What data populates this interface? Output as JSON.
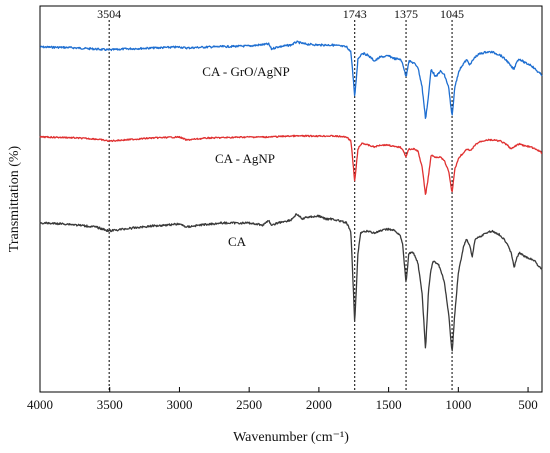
{
  "chart_data": {
    "type": "line",
    "xlabel": "Wavenumber (cm⁻¹)",
    "ylabel": "Transmittation (%)",
    "x_range": [
      4000,
      400
    ],
    "x_reversed": true,
    "x_ticks": [
      4000,
      3500,
      3000,
      2500,
      2000,
      1500,
      1000,
      500
    ],
    "y_ticks": false,
    "reference_lines": [
      3504,
      1743,
      1375,
      1045
    ],
    "series": [
      {
        "name": "CA - GrO/AgNP",
        "color": "#1f6fd1",
        "baseline": 47,
        "noise": 1.0,
        "points": [
          [
            4000,
            0
          ],
          [
            3800,
            0.5
          ],
          [
            3600,
            2
          ],
          [
            3504,
            3
          ],
          [
            3400,
            2
          ],
          [
            3200,
            1
          ],
          [
            3000,
            0
          ],
          [
            2950,
            1
          ],
          [
            2800,
            0
          ],
          [
            2500,
            -1
          ],
          [
            2360,
            -3
          ],
          [
            2340,
            2
          ],
          [
            2300,
            0
          ],
          [
            2200,
            -2
          ],
          [
            2160,
            -5
          ],
          [
            2100,
            -3
          ],
          [
            2000,
            -2
          ],
          [
            1900,
            -2
          ],
          [
            1800,
            0
          ],
          [
            1770,
            5
          ],
          [
            1743,
            50
          ],
          [
            1720,
            12
          ],
          [
            1690,
            6
          ],
          [
            1650,
            8
          ],
          [
            1600,
            14
          ],
          [
            1560,
            10
          ],
          [
            1500,
            9
          ],
          [
            1450,
            12
          ],
          [
            1420,
            12
          ],
          [
            1400,
            16
          ],
          [
            1375,
            30
          ],
          [
            1355,
            14
          ],
          [
            1320,
            16
          ],
          [
            1290,
            20
          ],
          [
            1260,
            40
          ],
          [
            1235,
            72
          ],
          [
            1215,
            50
          ],
          [
            1195,
            22
          ],
          [
            1170,
            28
          ],
          [
            1160,
            30
          ],
          [
            1130,
            24
          ],
          [
            1100,
            28
          ],
          [
            1070,
            40
          ],
          [
            1045,
            70
          ],
          [
            1025,
            40
          ],
          [
            1000,
            26
          ],
          [
            980,
            20
          ],
          [
            960,
            16
          ],
          [
            940,
            13
          ],
          [
            915,
            18
          ],
          [
            900,
            14
          ],
          [
            880,
            10
          ],
          [
            850,
            7
          ],
          [
            800,
            5
          ],
          [
            760,
            5
          ],
          [
            700,
            8
          ],
          [
            650,
            14
          ],
          [
            620,
            20
          ],
          [
            600,
            22
          ],
          [
            580,
            14
          ],
          [
            560,
            12
          ],
          [
            520,
            16
          ],
          [
            480,
            18
          ],
          [
            450,
            22
          ],
          [
            420,
            26
          ],
          [
            400,
            28
          ]
        ]
      },
      {
        "name": "CA - AgNP",
        "color": "#e03131",
        "baseline": 137,
        "noise": 0.7,
        "points": [
          [
            4000,
            0
          ],
          [
            3800,
            0.5
          ],
          [
            3600,
            2
          ],
          [
            3504,
            4
          ],
          [
            3400,
            3
          ],
          [
            3200,
            1
          ],
          [
            3000,
            0
          ],
          [
            2950,
            3
          ],
          [
            2800,
            1
          ],
          [
            2500,
            0
          ],
          [
            2360,
            0
          ],
          [
            2200,
            -1
          ],
          [
            2000,
            -1
          ],
          [
            1900,
            -1
          ],
          [
            1800,
            0
          ],
          [
            1770,
            4
          ],
          [
            1743,
            45
          ],
          [
            1720,
            12
          ],
          [
            1690,
            6
          ],
          [
            1650,
            8
          ],
          [
            1600,
            10
          ],
          [
            1560,
            8
          ],
          [
            1500,
            8
          ],
          [
            1450,
            10
          ],
          [
            1420,
            10
          ],
          [
            1400,
            12
          ],
          [
            1375,
            20
          ],
          [
            1355,
            12
          ],
          [
            1320,
            12
          ],
          [
            1290,
            14
          ],
          [
            1260,
            30
          ],
          [
            1235,
            58
          ],
          [
            1215,
            40
          ],
          [
            1195,
            18
          ],
          [
            1170,
            20
          ],
          [
            1130,
            20
          ],
          [
            1100,
            24
          ],
          [
            1070,
            34
          ],
          [
            1045,
            56
          ],
          [
            1025,
            32
          ],
          [
            1000,
            22
          ],
          [
            980,
            18
          ],
          [
            960,
            16
          ],
          [
            940,
            12
          ],
          [
            915,
            14
          ],
          [
            900,
            12
          ],
          [
            880,
            8
          ],
          [
            850,
            5
          ],
          [
            800,
            3
          ],
          [
            760,
            3
          ],
          [
            700,
            4
          ],
          [
            650,
            8
          ],
          [
            620,
            12
          ],
          [
            600,
            10
          ],
          [
            580,
            8
          ],
          [
            560,
            7
          ],
          [
            520,
            9
          ],
          [
            480,
            10
          ],
          [
            450,
            12
          ],
          [
            420,
            14
          ],
          [
            400,
            16
          ]
        ]
      },
      {
        "name": "CA",
        "color": "#3a3a3a",
        "baseline": 223,
        "noise": 1.0,
        "points": [
          [
            4000,
            0
          ],
          [
            3800,
            1
          ],
          [
            3600,
            4
          ],
          [
            3504,
            8
          ],
          [
            3400,
            6
          ],
          [
            3200,
            3
          ],
          [
            3000,
            1
          ],
          [
            2950,
            4
          ],
          [
            2850,
            2
          ],
          [
            2700,
            0
          ],
          [
            2500,
            0
          ],
          [
            2400,
            2
          ],
          [
            2360,
            -3
          ],
          [
            2340,
            3
          ],
          [
            2300,
            0
          ],
          [
            2200,
            -3
          ],
          [
            2160,
            -9
          ],
          [
            2120,
            -4
          ],
          [
            2080,
            -6
          ],
          [
            2000,
            -7
          ],
          [
            1950,
            -4
          ],
          [
            1900,
            -4
          ],
          [
            1850,
            -2
          ],
          [
            1800,
            0
          ],
          [
            1770,
            10
          ],
          [
            1743,
            100
          ],
          [
            1720,
            30
          ],
          [
            1700,
            10
          ],
          [
            1650,
            8
          ],
          [
            1600,
            10
          ],
          [
            1560,
            8
          ],
          [
            1500,
            6
          ],
          [
            1450,
            8
          ],
          [
            1420,
            12
          ],
          [
            1400,
            20
          ],
          [
            1375,
            60
          ],
          [
            1355,
            30
          ],
          [
            1320,
            30
          ],
          [
            1290,
            40
          ],
          [
            1260,
            70
          ],
          [
            1235,
            128
          ],
          [
            1215,
            70
          ],
          [
            1200,
            50
          ],
          [
            1180,
            38
          ],
          [
            1160,
            40
          ],
          [
            1140,
            42
          ],
          [
            1120,
            50
          ],
          [
            1100,
            60
          ],
          [
            1070,
            90
          ],
          [
            1045,
            130
          ],
          [
            1025,
            90
          ],
          [
            1000,
            50
          ],
          [
            980,
            36
          ],
          [
            960,
            22
          ],
          [
            940,
            16
          ],
          [
            915,
            24
          ],
          [
            900,
            34
          ],
          [
            880,
            16
          ],
          [
            850,
            14
          ],
          [
            800,
            10
          ],
          [
            760,
            8
          ],
          [
            700,
            12
          ],
          [
            650,
            20
          ],
          [
            620,
            30
          ],
          [
            600,
            45
          ],
          [
            580,
            34
          ],
          [
            560,
            30
          ],
          [
            520,
            34
          ],
          [
            480,
            36
          ],
          [
            450,
            38
          ],
          [
            420,
            44
          ],
          [
            400,
            46
          ]
        ]
      }
    ]
  }
}
